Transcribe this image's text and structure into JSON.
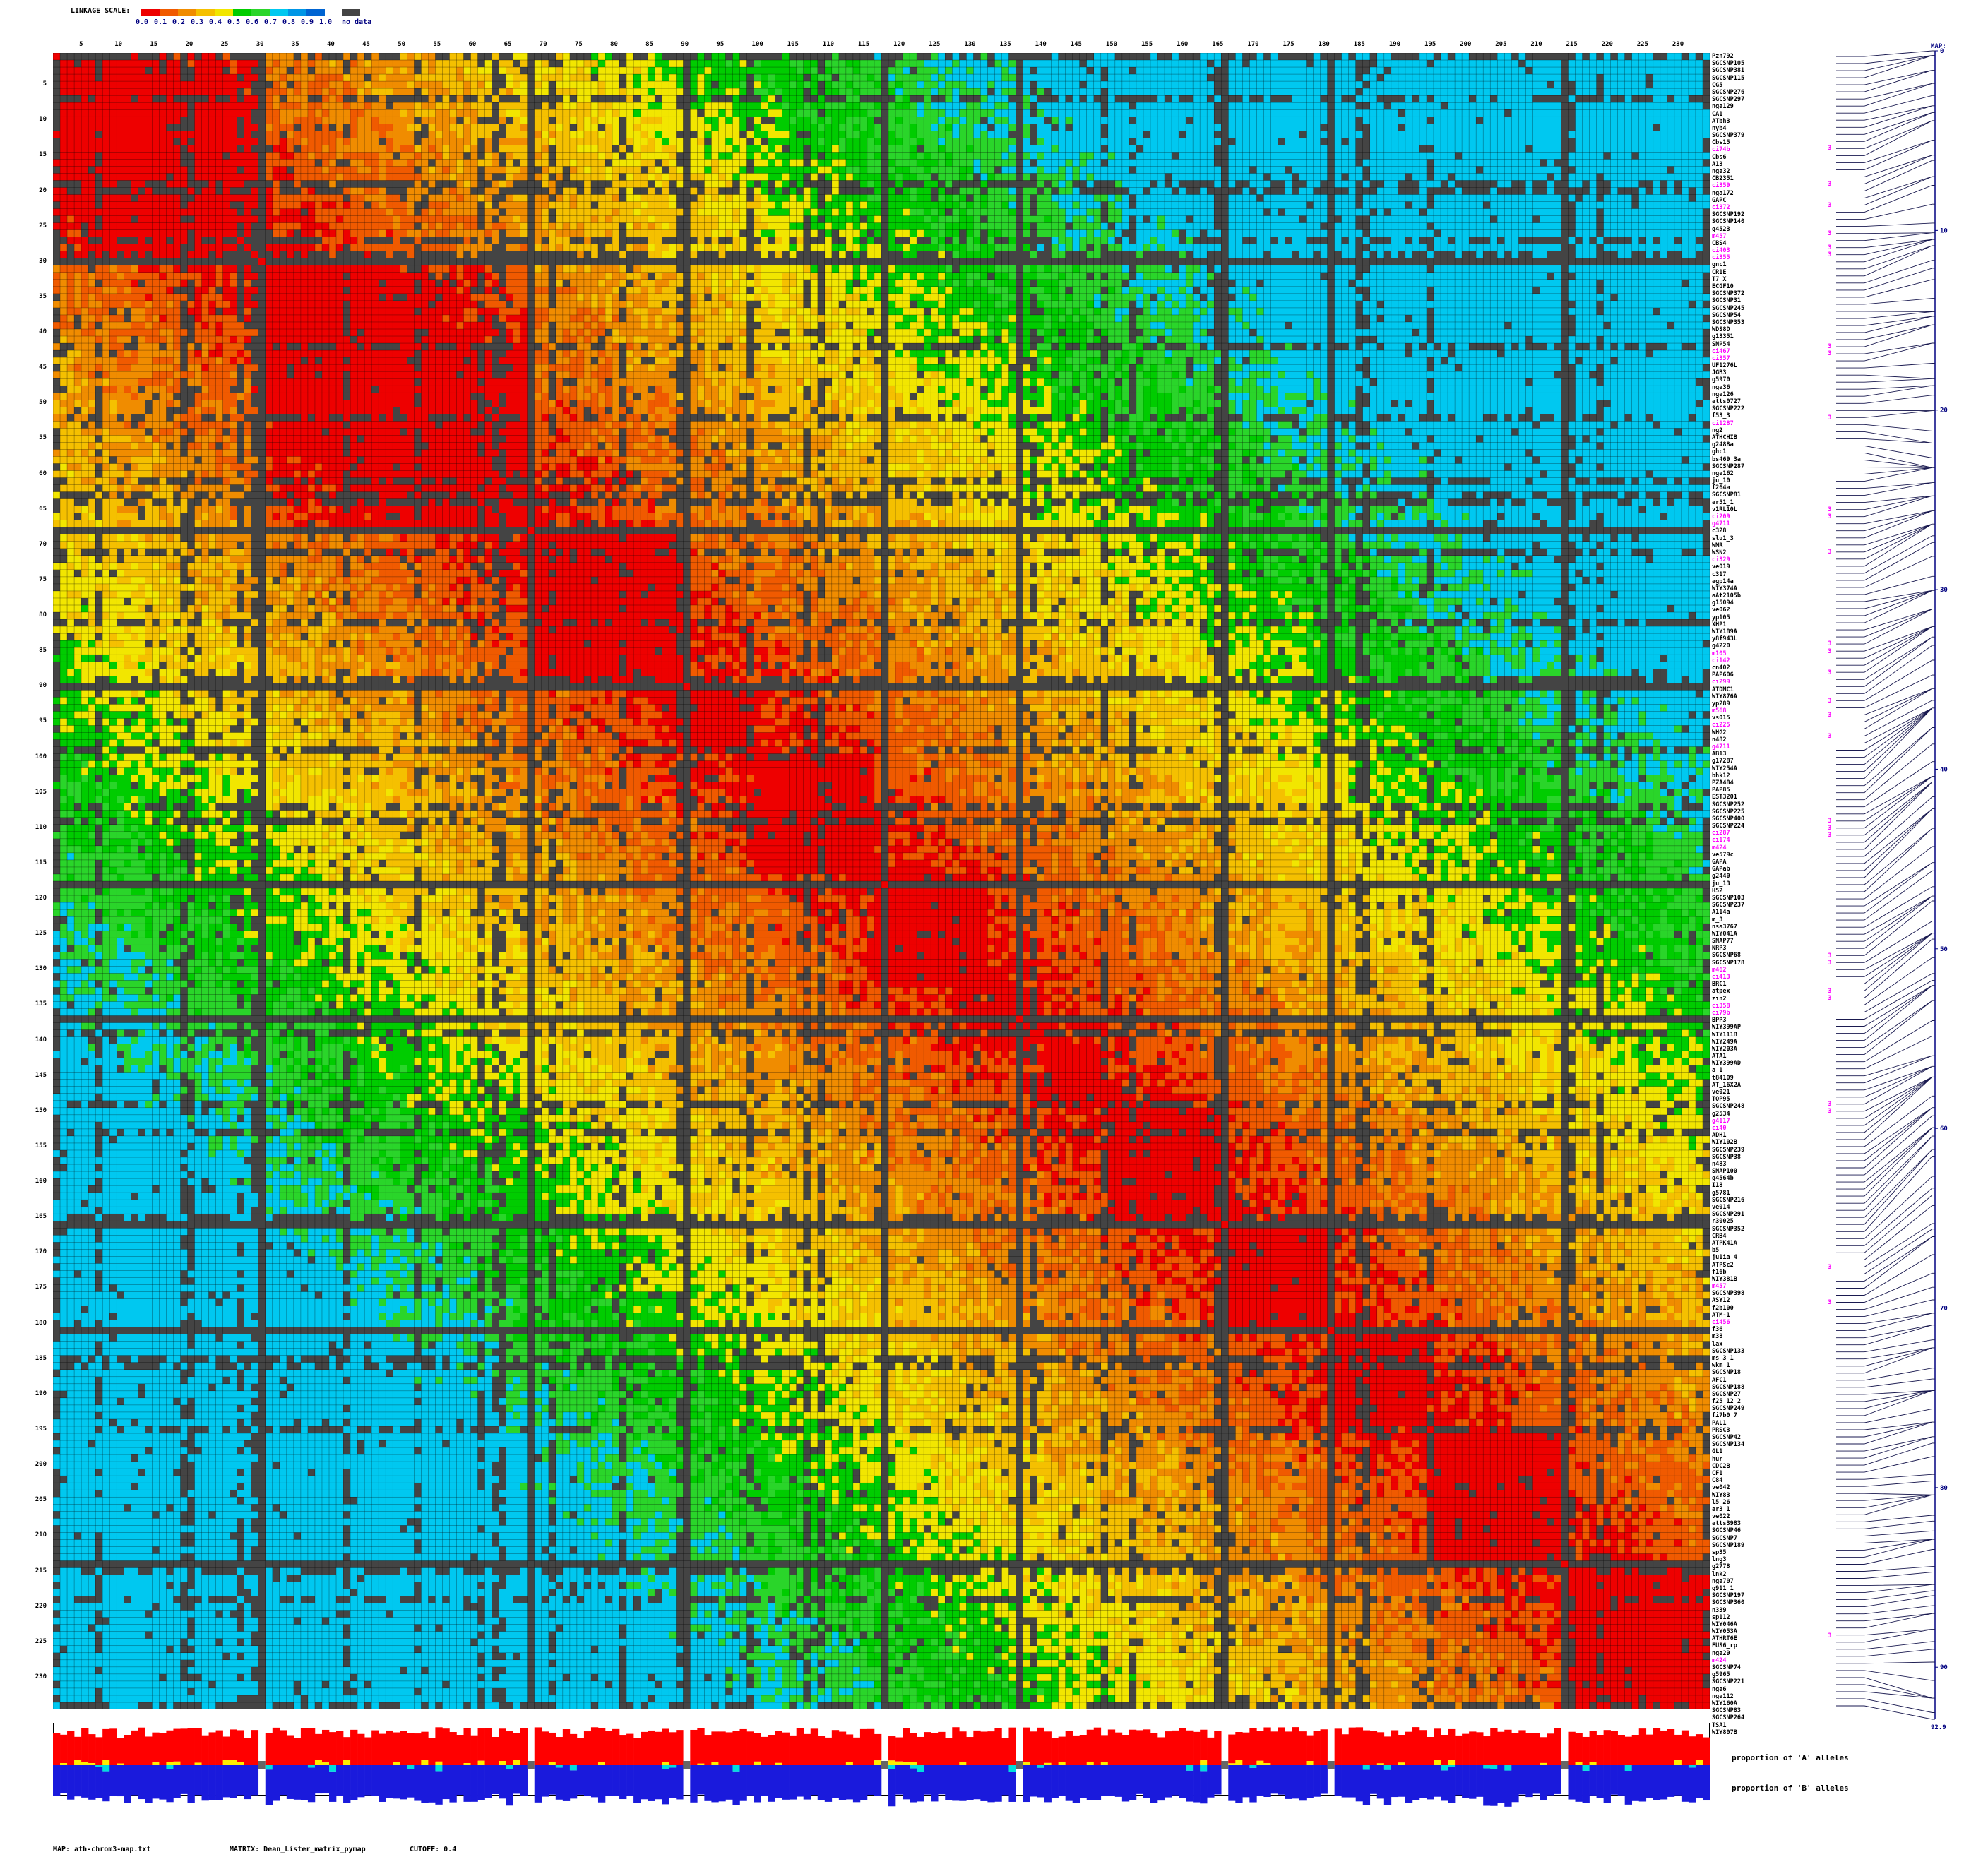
{
  "legend": {
    "title": "LINKAGE SCALE:",
    "ticks": [
      "0.0",
      "0.1",
      "0.2",
      "0.3",
      "0.4",
      "0.5",
      "0.6",
      "0.7",
      "0.8",
      "0.9",
      "1.0"
    ],
    "colors": [
      "#ee0000",
      "#f05a00",
      "#f08c00",
      "#f5c000",
      "#f2e600",
      "#00cc00",
      "#2ad52a",
      "#00c8f0",
      "#0096e6",
      "#0064d2",
      "#1428b4"
    ],
    "no_data_label": "no data",
    "no_data_color": "#444444"
  },
  "chart_data": {
    "type": "heatmap",
    "n_markers": 234,
    "column_ticks": [
      "5",
      "10",
      "15",
      "20",
      "25",
      "30",
      "35",
      "40",
      "45",
      "50",
      "55",
      "60",
      "65",
      "70",
      "75",
      "80",
      "85",
      "90",
      "95",
      "100",
      "105",
      "110",
      "115",
      "120",
      "125",
      "130",
      "135",
      "140",
      "145",
      "150",
      "155",
      "160",
      "165",
      "170",
      "175",
      "180",
      "185",
      "190",
      "195",
      "200",
      "205",
      "210",
      "215",
      "220",
      "225",
      "230"
    ],
    "row_ticks": [
      "5",
      "10",
      "15",
      "20",
      "25",
      "30",
      "35",
      "40",
      "45",
      "50",
      "55",
      "60",
      "65",
      "70",
      "75",
      "80",
      "85",
      "90",
      "95",
      "100",
      "105",
      "110",
      "115",
      "120",
      "125",
      "130",
      "135",
      "140",
      "145",
      "150",
      "155",
      "160",
      "165",
      "170",
      "175",
      "180",
      "185",
      "190",
      "195",
      "200",
      "205",
      "210",
      "215",
      "220",
      "225",
      "230"
    ],
    "no_data_markers": [
      30,
      68,
      90,
      118,
      137,
      166,
      181,
      214
    ],
    "block_boundaries": [
      1,
      30,
      68,
      90,
      100,
      117,
      133,
      141,
      150,
      166,
      181,
      195,
      214,
      234
    ],
    "markers": [
      "Pzn792",
      "SGCSNP105",
      "SGCSNP381",
      "SGCSNP115",
      "CG5",
      "SGCSNP276",
      "SGCSNP297",
      "nga129",
      "CA1",
      "ATbh3",
      "nyb4",
      "SGCSNP379",
      "Cbs15",
      "ci74b",
      "Cbs6",
      "A13",
      "nga32",
      "CB2351",
      "ci359",
      "nga172",
      "GAPC",
      "ci372",
      "SGCSNP192",
      "SGCSNP140",
      "g4523",
      "m457",
      "CBS4",
      "ci403",
      "ci355",
      "gnc1",
      "CR1E",
      "T7_X",
      "ECGF10",
      "SGCSNP372",
      "SGCSNP31",
      "SGCSNP245",
      "SGCSNP54",
      "SGCSNP353",
      "WDS8D",
      "g13351",
      "SNP54",
      "ci467",
      "ci357",
      "UF1276L",
      "JGB3",
      "g5970",
      "nga36",
      "nga126",
      "atts0727",
      "SGCSNP222",
      "f53_3",
      "ci1287",
      "ng2",
      "ATHCHIB",
      "g2488a",
      "ghc1",
      "bs469_3a",
      "SGCSNP287",
      "nga162",
      "ju_10",
      "f264a",
      "SGCSNP81",
      "ar51_1",
      "v1RL10L",
      "ci209",
      "g4711",
      "c328",
      "slu1_3",
      "WMR",
      "WSN2",
      "ci329",
      "ve019",
      "c317",
      "agp14a",
      "WIY374A",
      "aAt2105b",
      "g15094",
      "ve062",
      "yp105",
      "XHP1",
      "WIY189A",
      "y8f943L",
      "g4220",
      "m105",
      "ci142",
      "cn402",
      "PAP606",
      "ci299",
      "ATDMC1",
      "WIY876A",
      "yp289",
      "m568",
      "vs015",
      "ci225",
      "WHG2",
      "n482",
      "g4711",
      "AB13",
      "g17287",
      "WIY254A",
      "bhk12",
      "PZA484",
      "PAP85",
      "EST3201",
      "SGCSNP252",
      "SGCSNP225",
      "SGCSNP400",
      "SGCSNP224",
      "ci287",
      "ci174",
      "m424",
      "ve579c",
      "GAPA",
      "GAPab",
      "g2440",
      "ju_13",
      "H52",
      "SGCSNP103",
      "SGCSNP237",
      "A114a",
      "m_3",
      "nsa3767",
      "WIY041A",
      "SNAP77",
      "NRP3",
      "SGCSNP68",
      "SGCSNP178",
      "m462",
      "ci413",
      "BRC1",
      "atpex",
      "zin2",
      "ci358",
      "ci79b",
      "BPP3",
      "WIY399AP",
      "WIY111B",
      "WIY249A",
      "WIY203A",
      "ATA1",
      "WIY399AD",
      "a_1",
      "t84109",
      "AT_16X2A",
      "ve021",
      "TOP95",
      "SGCSNP248",
      "g2534",
      "g4117",
      "ci40",
      "ADH1",
      "WIY102B",
      "SGCSNP239",
      "SGCSNP38",
      "n483",
      "SNAP100",
      "g4564b",
      "I18",
      "g5781",
      "SGCSNP216",
      "ve014",
      "SGCSNP291",
      "r30025",
      "SGCSNP352",
      "CRB4",
      "ATPK41A",
      "b5",
      "ju1ia_4",
      "ATPSc2",
      "f16b",
      "WIY381B",
      "m457",
      "SGCSNP398",
      "ASY12",
      "f2b100",
      "ATM-1",
      "ci456",
      "f36",
      "m38",
      "lax",
      "SGCSNP133",
      "ms_3_1",
      "wkm_1",
      "SGCSNP18",
      "AFC1",
      "SGCSNP188",
      "SGCSNP27",
      "f25_12_2",
      "SGCSNP249",
      "fi7b0_7",
      "PAL1",
      "PRSC3",
      "SGCSNP42",
      "SGCSNP134",
      "GL1",
      "hur",
      "CDC2B",
      "CF1",
      "C84",
      "ve042",
      "WIY83",
      "l5_26",
      "ar3_1",
      "ve022",
      "atts3983",
      "SGCSNP46",
      "SGCSNP7",
      "SGCSNP189",
      "sp35",
      "lng3",
      "g2778",
      "lnk2",
      "nga707",
      "g911_1",
      "SGCSNP197",
      "SGCSNP360",
      "n339",
      "sp112",
      "WIY046A",
      "WIY053A",
      "ATHRT6E",
      "FUS6_rp",
      "nga29",
      "m424",
      "SGCSNP74",
      "g5965",
      "SGCSNP221",
      "nga6",
      "nga112",
      "WIY160A",
      "SGCSNP83",
      "SGCSNP264",
      "TSA1",
      "WIY807B"
    ],
    "highlighted_markers": [
      "ci74b",
      "ci359",
      "ci372",
      "m457",
      "ci403",
      "ci355",
      "ci467",
      "ci357",
      "ci1287",
      "ci209",
      "g4711",
      "ci329",
      "m105",
      "ci142",
      "ci299",
      "m568",
      "ci225",
      "ci287",
      "ci174",
      "m462",
      "ci413",
      "ci358",
      "ci79b",
      "g4117",
      "ci40",
      "m457",
      "ci456",
      "m424"
    ],
    "highlight_flag": "3",
    "map": {
      "label": "MAP:",
      "ticks": [
        "0",
        "10",
        "20",
        "30",
        "40",
        "50",
        "60",
        "70",
        "80",
        "90"
      ],
      "range": [
        0,
        92.9
      ],
      "end_label": "92.9"
    },
    "allele_proportions": {
      "a_label": "proportion of 'A' alleles",
      "b_label": "proportion of 'B' alleles",
      "a_color": "#ff0000",
      "b_color": "#1a1adc",
      "het_a_color": "#ffee00",
      "het_b_color": "#00dddd"
    }
  },
  "footer": {
    "map_text": "MAP: ath-chrom3-map.txt",
    "matrix_text": "MATRIX: Dean_Lister_matrix_pymap",
    "cutoff_text": "CUTOFF: 0.4"
  }
}
